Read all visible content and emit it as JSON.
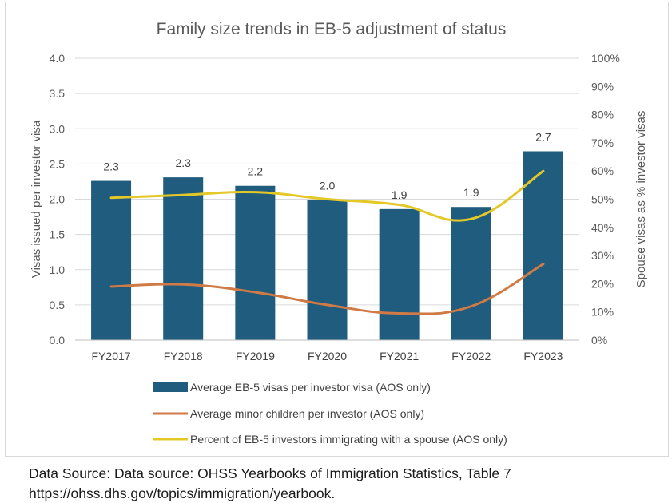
{
  "chart_data": {
    "type": "bar",
    "title": "Family size trends in EB-5 adjustment of status",
    "categories": [
      "FY2017",
      "FY2018",
      "FY2019",
      "FY2020",
      "FY2021",
      "FY2022",
      "FY2023"
    ],
    "ylabel": "Visas issued per investor visa",
    "y2label": "Spouse visas as % investor visas",
    "ylim": [
      0,
      4.0
    ],
    "y_ticks": [
      "0.0",
      "0.5",
      "1.0",
      "1.5",
      "2.0",
      "2.5",
      "3.0",
      "3.5",
      "4.0"
    ],
    "y2lim": [
      0,
      100
    ],
    "y2_ticks": [
      "0%",
      "10%",
      "20%",
      "30%",
      "40%",
      "50%",
      "60%",
      "70%",
      "80%",
      "90%",
      "100%"
    ],
    "grid": true,
    "legend_position": "bottom",
    "series": [
      {
        "name": "Average EB-5 visas per investor visa (AOS only)",
        "type": "bar",
        "axis": "left",
        "color": "#1f5c7e",
        "values": [
          2.26,
          2.31,
          2.19,
          1.99,
          1.86,
          1.89,
          2.68
        ],
        "data_labels": [
          "2.3",
          "2.3",
          "2.2",
          "2.0",
          "1.9",
          "1.9",
          "2.7"
        ]
      },
      {
        "name": "Average minor children per investor (AOS only)",
        "type": "line",
        "axis": "left",
        "color": "#d07a45",
        "values": [
          0.76,
          0.79,
          0.68,
          0.5,
          0.38,
          0.48,
          1.08
        ]
      },
      {
        "name": "Percent of EB-5 investors immigrating with a spouse (AOS only)",
        "type": "line",
        "axis": "right",
        "color": "#e3c828",
        "values": [
          50.5,
          51.5,
          52.5,
          50,
          48,
          43,
          60
        ]
      }
    ]
  },
  "source": {
    "line1": "Data Source: Data source: OHSS Yearbooks of Immigration Statistics, Table 7",
    "line2": "https://ohss.dhs.gov/topics/immigration/yearbook."
  }
}
